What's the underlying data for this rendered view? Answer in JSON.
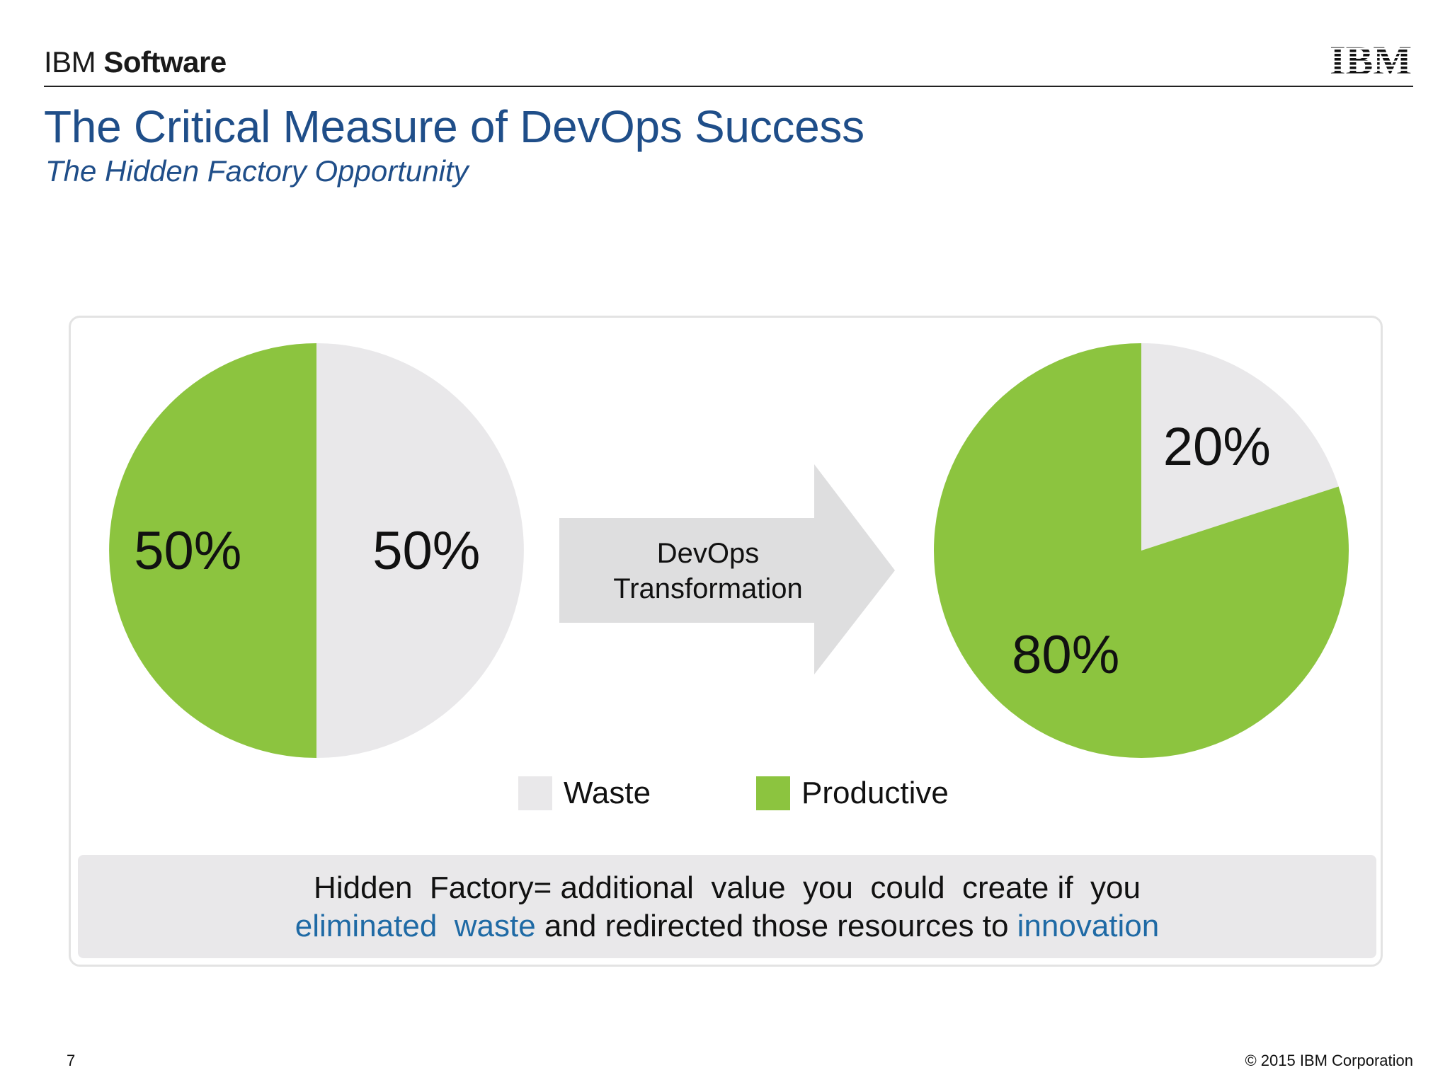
{
  "header": {
    "brand_ibm": "IBM",
    "brand_software": "Software",
    "logo_text": "IBM"
  },
  "slide": {
    "title": "The Critical Measure of DevOps Success",
    "subtitle": "The Hidden Factory Opportunity"
  },
  "colors": {
    "waste": "#e9e8ea",
    "productive": "#8cc43f",
    "arrow": "#dededf",
    "title": "#1f4e89",
    "accent": "#1f6aa5"
  },
  "chart_data": [
    {
      "type": "pie",
      "slices": [
        {
          "category": "Productive",
          "value": 50,
          "label": "50%"
        },
        {
          "category": "Waste",
          "value": 50,
          "label": "50%"
        }
      ]
    },
    {
      "type": "pie",
      "slices": [
        {
          "category": "Waste",
          "value": 20,
          "label": "20%"
        },
        {
          "category": "Productive",
          "value": 80,
          "label": "80%"
        }
      ]
    }
  ],
  "arrow": {
    "line1": "DevOps",
    "line2": "Transformation"
  },
  "legend": [
    {
      "label": "Waste",
      "color": "#e9e8ea"
    },
    {
      "label": "Productive",
      "color": "#8cc43f"
    }
  ],
  "note": {
    "line1": "Hidden  Factory= additional  value  you  could  create if  you",
    "accent1": "eliminated  waste",
    "middle": " and redirected those resources to ",
    "accent2": "innovation"
  },
  "footer": {
    "page_number": "7",
    "copyright": "© 2015 IBM Corporation"
  }
}
